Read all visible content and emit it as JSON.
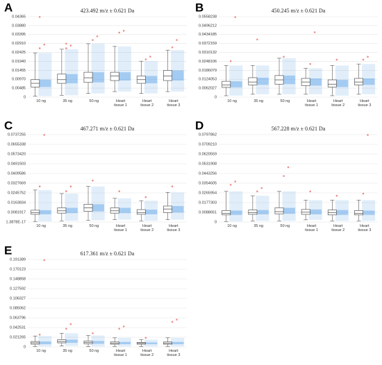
{
  "chart_data": [
    {
      "type": "box",
      "panel": "A",
      "title": "423.492 m/z ± 0.621 Da",
      "categories": [
        "10 ng",
        "35 ng",
        "50 ng",
        "Heart tissue 1",
        "Heart tissue 2",
        "Heart tissue 3"
      ],
      "ylim": [
        0,
        0.04365
      ],
      "yticks": [
        0,
        {
          "value": 0.00485,
          "label": "0.00485"
        },
        {
          "value": 0.0097,
          "label": "0.00970"
        },
        0.01455,
        {
          "value": 0.0194,
          "label": "0.01940"
        },
        0.02425,
        {
          "value": 0.0291,
          "label": "0.02910"
        },
        0.03395,
        {
          "value": 0.0388,
          "label": "0.03880"
        },
        0.04365
      ],
      "boxes": [
        {
          "min": 0.0005,
          "q1": 0.0055,
          "median": 0.0075,
          "q3": 0.0095,
          "max": 0.024,
          "outliers": [
            0.0265,
            0.0285,
            0.0435
          ]
        },
        {
          "min": 0.001,
          "q1": 0.0075,
          "median": 0.0095,
          "q3": 0.0125,
          "max": 0.026,
          "outliers": [
            0.0265,
            0.028,
            0.029
          ]
        },
        {
          "min": 0.002,
          "q1": 0.008,
          "median": 0.0105,
          "q3": 0.0135,
          "max": 0.029,
          "outliers": [
            0.031,
            0.033
          ]
        },
        {
          "min": 0.003,
          "q1": 0.009,
          "median": 0.0115,
          "q3": 0.0135,
          "max": 0.0275,
          "outliers": [
            0.035,
            0.036
          ]
        },
        {
          "min": 0.002,
          "q1": 0.0075,
          "median": 0.0095,
          "q3": 0.0115,
          "max": 0.0195,
          "outliers": [
            0.0205,
            0.022
          ]
        },
        {
          "min": 0.003,
          "q1": 0.009,
          "median": 0.0115,
          "q3": 0.0145,
          "max": 0.0255,
          "outliers": [
            0.027,
            0.031
          ]
        }
      ],
      "box_color": "#555555",
      "points_color": "#5aa0e6",
      "outlier_color": "#f08c8c",
      "grid": true
    },
    {
      "type": "box",
      "panel": "B",
      "title": "450.245 m/z ± 0.621 Da",
      "categories": [
        "10 ng",
        "35 ng",
        "50 ng",
        "Heart tissue 1",
        "Heart tissue 2",
        "Heart tissue 3"
      ],
      "ylim": [
        0,
        0.0558238
      ],
      "yticks": [
        0,
        0.0062027,
        0.0124053,
        0.0186079,
        0.0248106,
        0.0310132,
        0.0372159,
        0.0434185,
        0.0496212,
        0.0558238
      ],
      "boxes": [
        {
          "min": 0.001,
          "q1": 0.0068,
          "median": 0.0085,
          "q3": 0.011,
          "max": 0.022,
          "outliers": [
            0.025,
            0.0555
          ]
        },
        {
          "min": 0.002,
          "q1": 0.0085,
          "median": 0.0105,
          "q3": 0.0135,
          "max": 0.022,
          "outliers": [
            0.04
          ]
        },
        {
          "min": 0.002,
          "q1": 0.009,
          "median": 0.012,
          "q3": 0.015,
          "max": 0.027,
          "outliers": [
            0.028
          ]
        },
        {
          "min": 0.002,
          "q1": 0.008,
          "median": 0.0105,
          "q3": 0.013,
          "max": 0.02,
          "outliers": [
            0.023,
            0.045
          ]
        },
        {
          "min": 0.001,
          "q1": 0.007,
          "median": 0.009,
          "q3": 0.012,
          "max": 0.022,
          "outliers": [
            0.026
          ]
        },
        {
          "min": 0.002,
          "q1": 0.0085,
          "median": 0.0105,
          "q3": 0.013,
          "max": 0.023,
          "outliers": [
            0.026,
            0.028
          ]
        }
      ],
      "box_color": "#555555",
      "points_color": "#5aa0e6",
      "outlier_color": "#f08c8c",
      "grid": true
    },
    {
      "type": "box",
      "panel": "C",
      "title": "467.271 m/z ± 0.621 Da",
      "categories": [
        "10 ng",
        "35 ng",
        "50 ng",
        "Heart tissue 1",
        "Heart tissue 2",
        "Heart tissue 3"
      ],
      "ylim": [
        1.3878e-17,
        0.0737255
      ],
      "yticks": [
        {
          "value": 1.3878e-17,
          "label": "1.3878E-17"
        },
        0.0081917,
        0.0163834,
        0.0245752,
        0.0327669,
        0.0409586,
        0.0491503,
        {
          "value": 0.057342,
          "label": "0.0573420"
        },
        0.0655338,
        0.0737255
      ],
      "boxes": [
        {
          "min": 0.0005,
          "q1": 0.0065,
          "median": 0.008,
          "q3": 0.01,
          "max": 0.027,
          "outliers": [
            0.03,
            0.0735
          ]
        },
        {
          "min": 0.001,
          "q1": 0.0075,
          "median": 0.0095,
          "q3": 0.012,
          "max": 0.024,
          "outliers": [
            0.026,
            0.03
          ]
        },
        {
          "min": 0.0015,
          "q1": 0.009,
          "median": 0.012,
          "q3": 0.015,
          "max": 0.03,
          "outliers": [
            0.035
          ]
        },
        {
          "min": 0.002,
          "q1": 0.0075,
          "median": 0.0095,
          "q3": 0.012,
          "max": 0.02,
          "outliers": [
            0.026
          ]
        },
        {
          "min": 0.001,
          "q1": 0.0065,
          "median": 0.008,
          "q3": 0.0105,
          "max": 0.018,
          "outliers": [
            0.021
          ]
        },
        {
          "min": 0.002,
          "q1": 0.008,
          "median": 0.011,
          "q3": 0.0135,
          "max": 0.025,
          "outliers": [
            0.03
          ]
        }
      ],
      "box_color": "#555555",
      "points_color": "#5aa0e6",
      "outlier_color": "#f08c8c",
      "grid": true
    },
    {
      "type": "box",
      "panel": "D",
      "title": "567.228 m/z ± 0.621 Da",
      "categories": [
        "10 ng",
        "35 ng",
        "50 ng",
        "Heart tissue 1",
        "Heart tissue 2",
        "Heart tissue 3"
      ],
      "ylim": [
        0,
        0.0797862
      ],
      "yticks": [
        0,
        0.0088651,
        0.0177303,
        0.0265954,
        0.0354605,
        0.0443256,
        0.0531908,
        0.0620559,
        {
          "value": 0.070921,
          "label": "0.0709210"
        },
        0.0797862
      ],
      "boxes": [
        {
          "min": 0.0005,
          "q1": 0.0065,
          "median": 0.008,
          "q3": 0.0105,
          "max": 0.028,
          "outliers": [
            0.034,
            0.037
          ]
        },
        {
          "min": 0.001,
          "q1": 0.007,
          "median": 0.0085,
          "q3": 0.011,
          "max": 0.024,
          "outliers": [
            0.028,
            0.031
          ]
        },
        {
          "min": 0.001,
          "q1": 0.0075,
          "median": 0.0095,
          "q3": 0.013,
          "max": 0.028,
          "outliers": [
            0.042,
            0.05
          ]
        },
        {
          "min": 0.002,
          "q1": 0.007,
          "median": 0.009,
          "q3": 0.0115,
          "max": 0.02,
          "outliers": [
            0.028
          ]
        },
        {
          "min": 0.001,
          "q1": 0.0065,
          "median": 0.0085,
          "q3": 0.011,
          "max": 0.02,
          "outliers": [
            0.024
          ]
        },
        {
          "min": 0.001,
          "q1": 0.0065,
          "median": 0.008,
          "q3": 0.0105,
          "max": 0.02,
          "outliers": [
            0.026,
            0.0795
          ]
        }
      ],
      "box_color": "#555555",
      "points_color": "#5aa0e6",
      "outlier_color": "#f08c8c",
      "grid": true
    },
    {
      "type": "box",
      "panel": "E",
      "title": "617.361 m/z ± 0.621 Da",
      "categories": [
        "10 ng",
        "35 ng",
        "50 ng",
        "Heart tissue 1",
        "Heart tissue 2",
        "Heart tissue 3"
      ],
      "ylim": [
        0,
        0.191389
      ],
      "yticks": [
        0,
        0.021265,
        0.042531,
        0.063796,
        0.085062,
        0.106327,
        0.127592,
        0.148858,
        0.170123,
        0.191389
      ],
      "boxes": [
        {
          "min": 0.001,
          "q1": 0.006,
          "median": 0.009,
          "q3": 0.012,
          "max": 0.024,
          "outliers": [
            0.027,
            0.19
          ]
        },
        {
          "min": 0.002,
          "q1": 0.009,
          "median": 0.012,
          "q3": 0.016,
          "max": 0.03,
          "outliers": [
            0.04,
            0.05
          ]
        },
        {
          "min": 0.001,
          "q1": 0.007,
          "median": 0.01,
          "q3": 0.013,
          "max": 0.025,
          "outliers": [
            0.03
          ]
        },
        {
          "min": 0.001,
          "q1": 0.006,
          "median": 0.008,
          "q3": 0.011,
          "max": 0.02,
          "outliers": [
            0.04,
            0.045
          ]
        },
        {
          "min": 0.001,
          "q1": 0.006,
          "median": 0.008,
          "q3": 0.01,
          "max": 0.016,
          "outliers": [
            0.02
          ]
        },
        {
          "min": 0.001,
          "q1": 0.006,
          "median": 0.008,
          "q3": 0.011,
          "max": 0.02,
          "outliers": [
            0.055,
            0.06
          ]
        }
      ],
      "box_color": "#555555",
      "points_color": "#5aa0e6",
      "outlier_color": "#f08c8c",
      "grid": true
    }
  ]
}
